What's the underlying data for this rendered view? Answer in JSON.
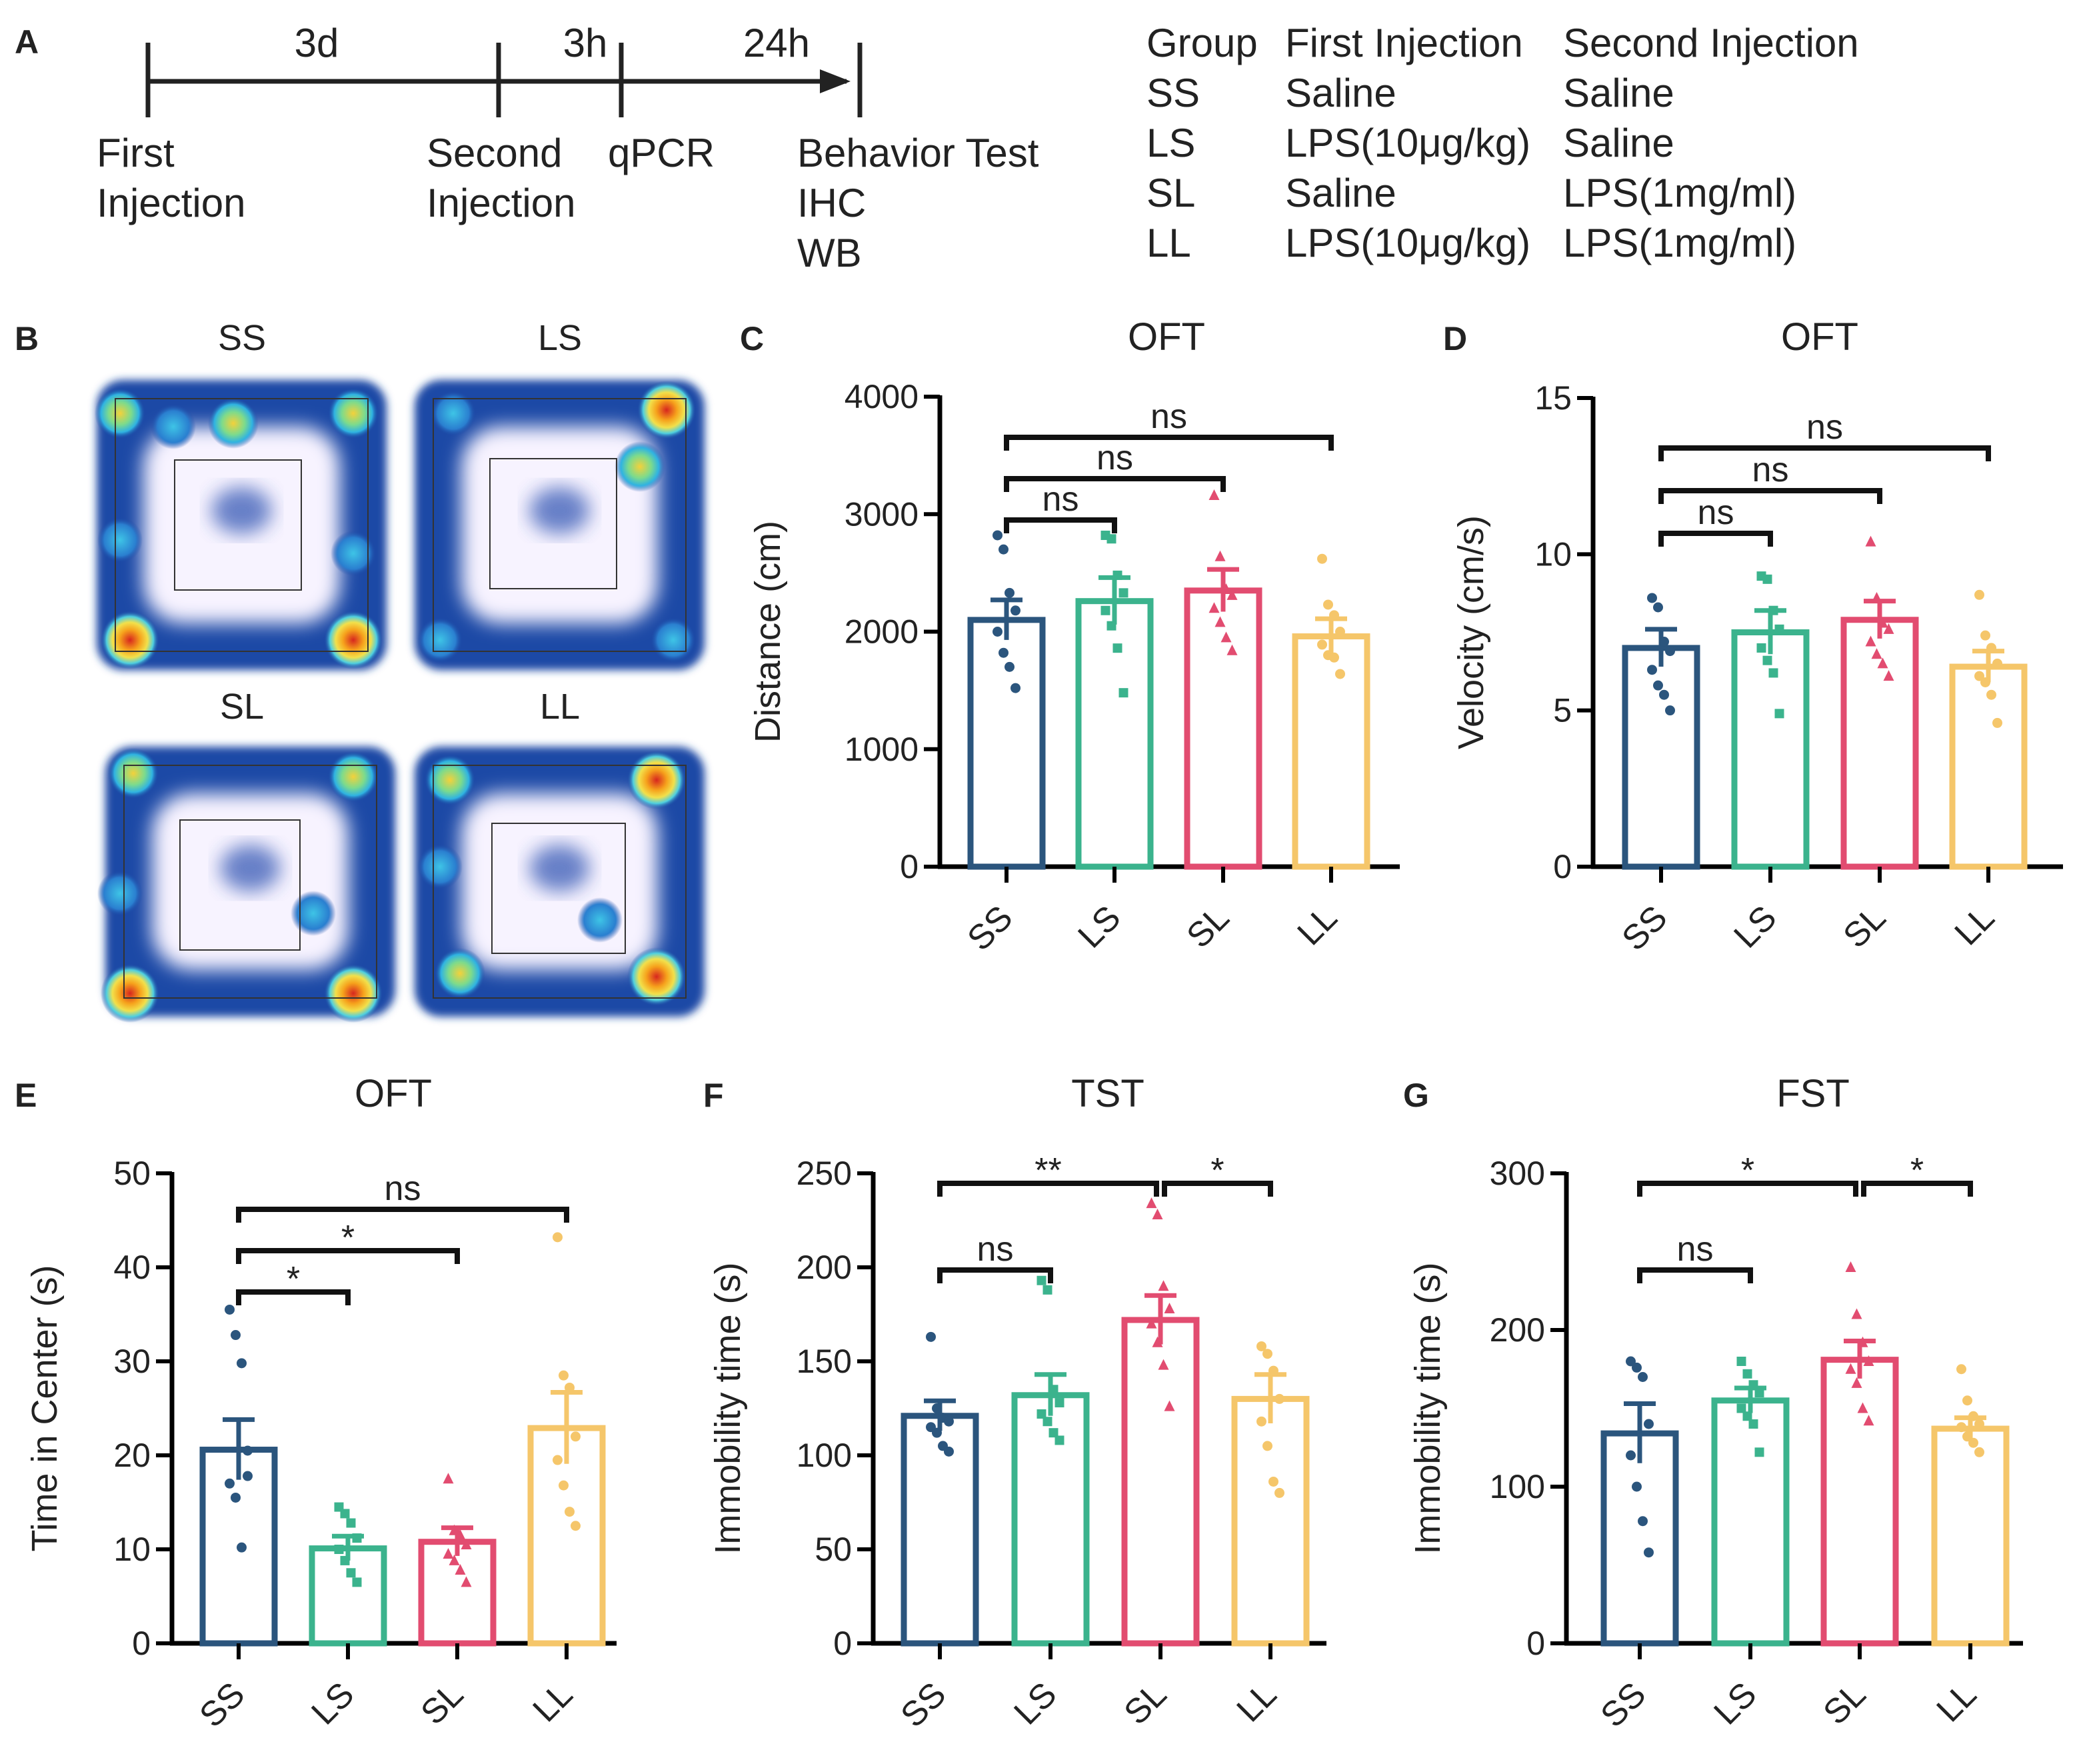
{
  "panels": {
    "A": "A",
    "B": "B",
    "C": "C",
    "D": "D",
    "E": "E",
    "F": "F",
    "G": "G"
  },
  "timeline": {
    "intervals": [
      "3d",
      "3h",
      "24h"
    ],
    "events": {
      "first": [
        "First",
        "Injection"
      ],
      "second": [
        "Second",
        "Injection"
      ],
      "qpcr": [
        "qPCR"
      ],
      "behavior": [
        "Behavior Test",
        "IHC",
        "WB"
      ]
    }
  },
  "group_table": {
    "headers": [
      "Group",
      "First Injection",
      "Second Injection"
    ],
    "rows": [
      [
        "SS",
        "Saline",
        "Saline"
      ],
      [
        "LS",
        "LPS(10μg/kg)",
        "Saline"
      ],
      [
        "SL",
        "Saline",
        "LPS(1mg/ml)"
      ],
      [
        "LL",
        "LPS(10μg/kg)",
        "LPS(1mg/ml)"
      ]
    ]
  },
  "heatmaps": {
    "titles": [
      "SS",
      "LS",
      "SL",
      "LL"
    ]
  },
  "colors": {
    "SS": "#2b557d",
    "LS": "#3bb38d",
    "SL": "#e24c70",
    "LL": "#f5c66a",
    "axis": "#000000",
    "heat_low": "#1d4aa6",
    "heat_high": "#d7261e"
  },
  "chart_data": [
    {
      "id": "C",
      "type": "bar",
      "title": "OFT",
      "ylabel": "Distance (cm)",
      "categories": [
        "SS",
        "LS",
        "SL",
        "LL"
      ],
      "values": [
        2100,
        2260,
        2350,
        1960
      ],
      "sem": [
        170,
        200,
        180,
        150
      ],
      "points": [
        [
          2820,
          2700,
          2330,
          2180,
          2000,
          1820,
          1700,
          1520
        ],
        [
          2820,
          2790,
          2480,
          2330,
          2180,
          2050,
          1860,
          1480
        ],
        [
          3160,
          2640,
          2360,
          2310,
          2200,
          2080,
          1950,
          1840
        ],
        [
          2620,
          2230,
          2140,
          2000,
          1890,
          1800,
          1780,
          1640
        ]
      ],
      "ylim": [
        0,
        4000
      ],
      "yticks": [
        0,
        1000,
        2000,
        3000,
        4000
      ],
      "comparisons": [
        {
          "from": 0,
          "to": 1,
          "label": "ns",
          "level": 1
        },
        {
          "from": 0,
          "to": 2,
          "label": "ns",
          "level": 2
        },
        {
          "from": 0,
          "to": 3,
          "label": "ns",
          "level": 3
        }
      ]
    },
    {
      "id": "D",
      "type": "bar",
      "title": "OFT",
      "ylabel": "Velocity (cm/s)",
      "categories": [
        "SS",
        "LS",
        "SL",
        "LL"
      ],
      "values": [
        7.0,
        7.5,
        7.9,
        6.4
      ],
      "sem": [
        0.6,
        0.7,
        0.6,
        0.5
      ],
      "points": [
        [
          8.6,
          8.3,
          7.2,
          6.9,
          6.3,
          5.8,
          5.5,
          5.0
        ],
        [
          9.3,
          9.2,
          8.2,
          7.6,
          7.0,
          6.6,
          6.2,
          4.9
        ],
        [
          10.4,
          8.6,
          7.8,
          7.6,
          7.2,
          6.8,
          6.5,
          6.1
        ],
        [
          8.7,
          7.4,
          7.0,
          6.5,
          6.1,
          5.9,
          5.5,
          4.6
        ]
      ],
      "ylim": [
        0,
        15
      ],
      "yticks": [
        0,
        5,
        10,
        15
      ],
      "comparisons": [
        {
          "from": 0,
          "to": 1,
          "label": "ns",
          "level": 1
        },
        {
          "from": 0,
          "to": 2,
          "label": "ns",
          "level": 2
        },
        {
          "from": 0,
          "to": 3,
          "label": "ns",
          "level": 3
        }
      ]
    },
    {
      "id": "E",
      "type": "bar",
      "title": "OFT",
      "ylabel": "Time in Center (s)",
      "categories": [
        "SS",
        "LS",
        "SL",
        "LL"
      ],
      "values": [
        20.6,
        10.1,
        10.8,
        22.9
      ],
      "sem": [
        3.2,
        1.3,
        1.5,
        3.8
      ],
      "points": [
        [
          35.5,
          32.8,
          29.8,
          20.5,
          17.0,
          15.5,
          10.2,
          17.8
        ],
        [
          14.5,
          13.8,
          12.8,
          11.2,
          10.0,
          8.8,
          7.5,
          6.5
        ],
        [
          17.5,
          12.0,
          11.5,
          10.5,
          9.5,
          8.8,
          7.8,
          6.5
        ],
        [
          43.2,
          28.5,
          27.2,
          22.0,
          19.5,
          16.8,
          14.0,
          12.5
        ]
      ],
      "ylim": [
        0,
        50
      ],
      "yticks": [
        0,
        10,
        20,
        30,
        40,
        50
      ],
      "comparisons": [
        {
          "from": 0,
          "to": 1,
          "label": "*",
          "level": 1
        },
        {
          "from": 0,
          "to": 2,
          "label": "*",
          "level": 2
        },
        {
          "from": 0,
          "to": 3,
          "label": "ns",
          "level": 3
        }
      ]
    },
    {
      "id": "F",
      "type": "bar",
      "title": "TST",
      "ylabel": "Immobility time (s)",
      "categories": [
        "SS",
        "LS",
        "SL",
        "LL"
      ],
      "values": [
        121,
        132,
        172,
        130
      ],
      "sem": [
        8,
        11,
        13,
        13
      ],
      "points": [
        [
          163,
          125,
          120,
          118,
          115,
          112,
          105,
          102
        ],
        [
          193,
          188,
          135,
          128,
          122,
          118,
          112,
          108
        ],
        [
          234,
          228,
          190,
          178,
          170,
          160,
          148,
          126
        ],
        [
          158,
          154,
          145,
          130,
          118,
          105,
          86,
          80
        ]
      ],
      "ylim": [
        0,
        250
      ],
      "yticks": [
        0,
        50,
        100,
        150,
        200,
        250
      ],
      "comparisons": [
        {
          "from": 0,
          "to": 1,
          "label": "ns",
          "level": 1
        },
        {
          "from": 0,
          "to": 2,
          "label": "**",
          "level": 3
        },
        {
          "from": 2,
          "to": 3,
          "label": "*",
          "level": 3
        }
      ]
    },
    {
      "id": "G",
      "type": "bar",
      "title": "FST",
      "ylabel": "Immobility time (s)",
      "categories": [
        "SS",
        "LS",
        "SL",
        "LL"
      ],
      "values": [
        134,
        155,
        181,
        137
      ],
      "sem": [
        19,
        8,
        12,
        7
      ],
      "points": [
        [
          180,
          176,
          170,
          140,
          120,
          100,
          78,
          58
        ],
        [
          180,
          172,
          165,
          160,
          150,
          145,
          140,
          122
        ],
        [
          240,
          210,
          192,
          180,
          175,
          166,
          150,
          142
        ],
        [
          175,
          155,
          145,
          140,
          138,
          132,
          128,
          122
        ]
      ],
      "ylim": [
        0,
        300
      ],
      "yticks": [
        0,
        100,
        200,
        300
      ],
      "comparisons": [
        {
          "from": 0,
          "to": 1,
          "label": "ns",
          "level": 1
        },
        {
          "from": 0,
          "to": 2,
          "label": "*",
          "level": 3
        },
        {
          "from": 2,
          "to": 3,
          "label": "*",
          "level": 3
        }
      ]
    }
  ]
}
